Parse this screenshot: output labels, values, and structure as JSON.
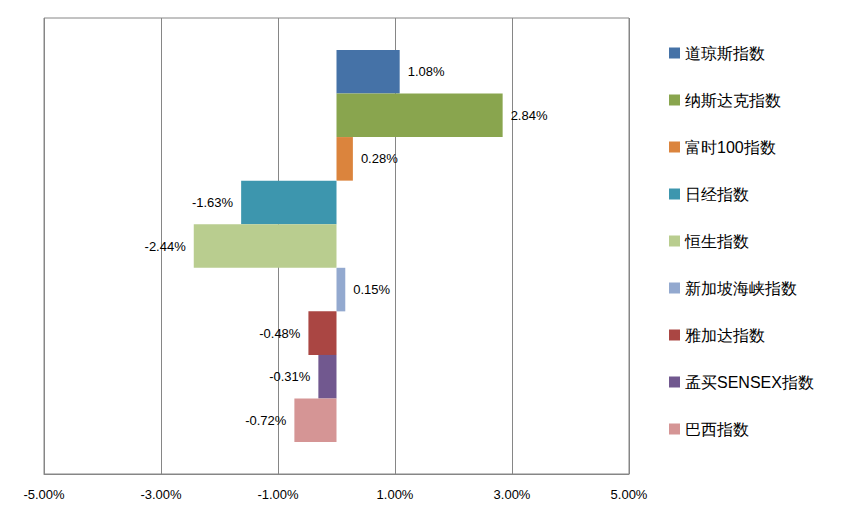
{
  "chart_data": {
    "type": "bar",
    "orientation": "horizontal",
    "categories": [
      null
    ],
    "series": [
      {
        "name": "道琼斯指数",
        "color": "#4572A7",
        "values": [
          1.08
        ],
        "value_labels": [
          "1.08%"
        ]
      },
      {
        "name": "纳斯达克指数",
        "color": "#89A54E",
        "values": [
          2.84
        ],
        "value_labels": [
          "2.84%"
        ]
      },
      {
        "name": "富时100指数",
        "color": "#DB843D",
        "values": [
          0.28
        ],
        "value_labels": [
          "0.28%"
        ]
      },
      {
        "name": "日经指数",
        "color": "#3D96AE",
        "values": [
          -1.63
        ],
        "value_labels": [
          "-1.63%"
        ]
      },
      {
        "name": "恒生指数",
        "color": "#B9CD8F",
        "values": [
          -2.44
        ],
        "value_labels": [
          "-2.44%"
        ]
      },
      {
        "name": "新加坡海峡指数",
        "color": "#93A9CF",
        "values": [
          0.15
        ],
        "value_labels": [
          "0.15%"
        ]
      },
      {
        "name": "雅加达指数",
        "color": "#AA4643",
        "values": [
          -0.48
        ],
        "value_labels": [
          "-0.48%"
        ]
      },
      {
        "name": "孟买SENSEX指数",
        "color": "#71588F",
        "values": [
          -0.31
        ],
        "value_labels": [
          "-0.31%"
        ]
      },
      {
        "name": "巴西指数",
        "color": "#D59595",
        "values": [
          -0.72
        ],
        "value_labels": [
          "-0.72%"
        ]
      }
    ],
    "xlim": [
      -5,
      5
    ],
    "xticks": [
      {
        "value": -5,
        "label": "-5.00%"
      },
      {
        "value": -3,
        "label": "-3.00%"
      },
      {
        "value": -1,
        "label": "-1.00%"
      },
      {
        "value": 1,
        "label": "1.00%"
      },
      {
        "value": 3,
        "label": "3.00%"
      },
      {
        "value": 5,
        "label": "5.00%"
      }
    ],
    "grid": true,
    "legend": "right",
    "data_labels": true,
    "tick_labels": "x"
  }
}
